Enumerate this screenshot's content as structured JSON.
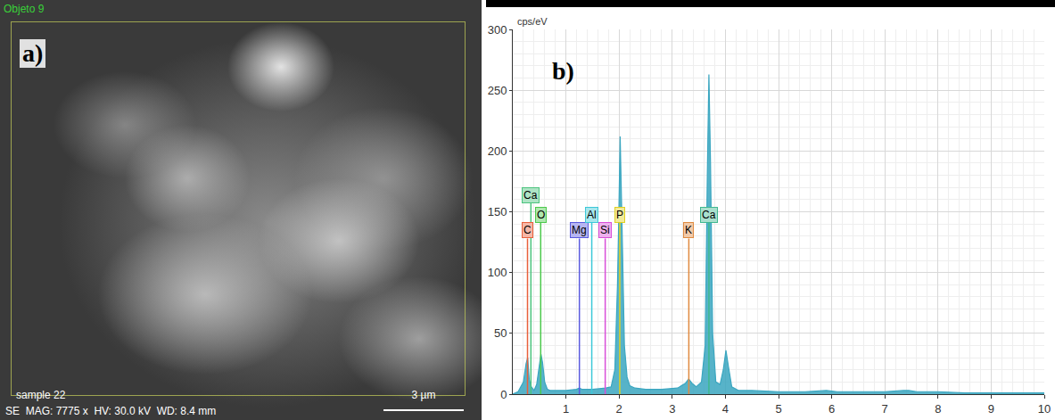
{
  "image_panel": {
    "corner_label": "Objeto 9",
    "panel_label": "a)",
    "sample": "sample 22",
    "scale_bar": "3 µm",
    "info": "SE  MAG: 7775 x  HV: 30.0 kV  WD: 8.4 mm"
  },
  "chart_data": {
    "type": "area",
    "panel_label": "b)",
    "y_label": "cps/eV",
    "color": "#3aa6c0",
    "x": [
      0,
      0.1,
      0.2,
      0.25,
      0.28,
      0.31,
      0.35,
      0.4,
      0.45,
      0.5,
      0.53,
      0.56,
      0.6,
      0.65,
      0.7,
      0.8,
      1.0,
      1.2,
      1.25,
      1.3,
      1.5,
      1.75,
      1.85,
      1.92,
      1.97,
      2.0,
      2.02,
      2.05,
      2.1,
      2.15,
      2.2,
      2.3,
      2.5,
      2.8,
      3.1,
      3.25,
      3.31,
      3.37,
      3.45,
      3.55,
      3.62,
      3.66,
      3.69,
      3.72,
      3.76,
      3.82,
      3.9,
      3.96,
      4.01,
      4.06,
      4.12,
      4.25,
      4.5,
      5.0,
      5.5,
      5.9,
      6.1,
      6.5,
      7.0,
      7.35,
      7.45,
      7.6,
      8.0,
      8.5,
      9.0,
      9.5,
      10.0
    ],
    "values": [
      0,
      2,
      10,
      25,
      30,
      12,
      6,
      3,
      8,
      26,
      33,
      26,
      10,
      4,
      3,
      3,
      3,
      4,
      5,
      4,
      4,
      5,
      6,
      20,
      90,
      160,
      212,
      150,
      40,
      14,
      7,
      5,
      4,
      4,
      5,
      9,
      12.5,
      9,
      6,
      10,
      40,
      180,
      263,
      190,
      50,
      10,
      8,
      20,
      36,
      22,
      6,
      3,
      3,
      2,
      2,
      3,
      2,
      2,
      2,
      3,
      3,
      2,
      2,
      1,
      1,
      1,
      1
    ],
    "xlim": [
      0,
      10
    ],
    "xticks": [
      1,
      2,
      3,
      4,
      5,
      6,
      7,
      8,
      9,
      10
    ],
    "ylim": [
      0,
      300
    ],
    "yticks": [
      0,
      50,
      100,
      150,
      200,
      250,
      300
    ],
    "grid": true,
    "annotations": [
      {
        "text": "Ca",
        "x": 0.341,
        "y": 157,
        "color": "#4cc47e"
      },
      {
        "text": "C",
        "x": 0.277,
        "y": 128,
        "color": "#e8603c"
      },
      {
        "text": "O",
        "x": 0.525,
        "y": 141,
        "color": "#4cc94c"
      },
      {
        "text": "Mg",
        "x": 1.253,
        "y": 128,
        "color": "#5a5adf"
      },
      {
        "text": "Al",
        "x": 1.486,
        "y": 141,
        "color": "#3cc8d8"
      },
      {
        "text": "Si",
        "x": 1.739,
        "y": 128,
        "color": "#d94fd9"
      },
      {
        "text": "P",
        "x": 2.013,
        "y": 141,
        "color": "#e0d020"
      },
      {
        "text": "K",
        "x": 3.312,
        "y": 128,
        "color": "#e08a40"
      },
      {
        "text": "Ca",
        "x": 3.69,
        "y": 141,
        "color": "#40b890"
      }
    ]
  }
}
